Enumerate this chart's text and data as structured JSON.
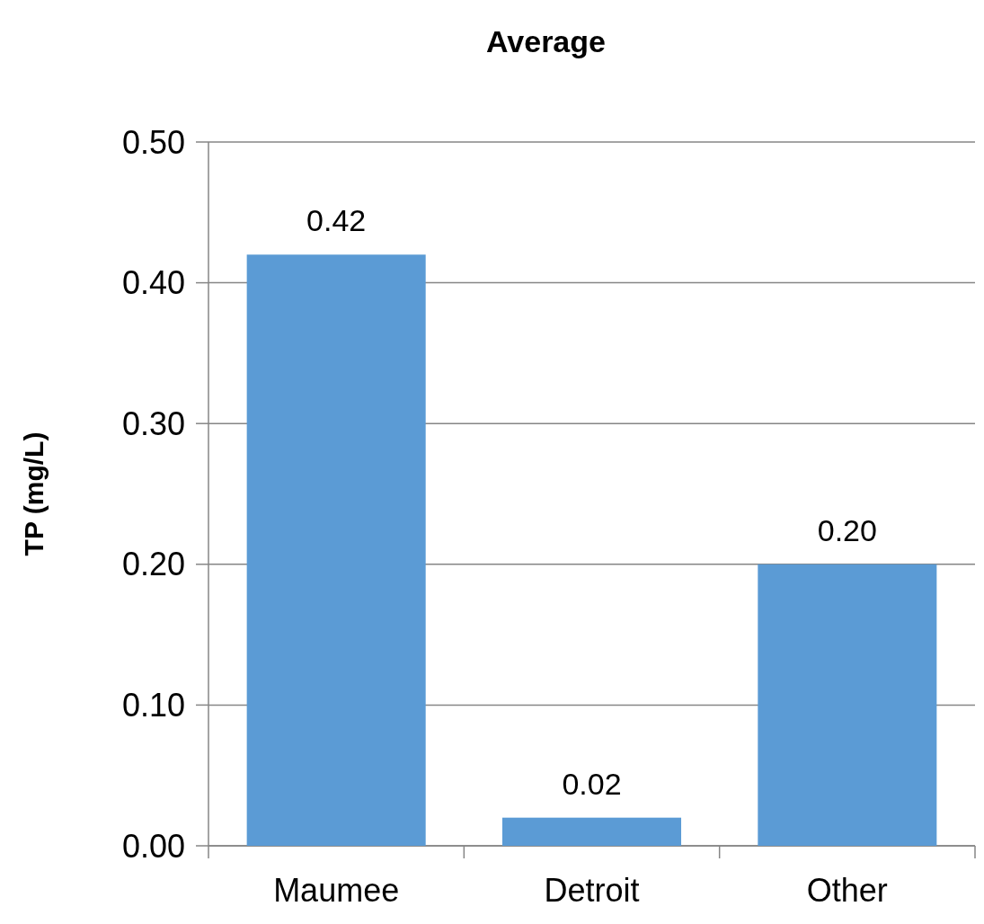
{
  "chart_data": {
    "type": "bar",
    "title": "Average",
    "ylabel": "TP (mg/L)",
    "categories": [
      "Maumee",
      "Detroit",
      "Other"
    ],
    "values": [
      0.42,
      0.02,
      0.2
    ],
    "value_labels": [
      "0.42",
      "0.02",
      "0.20"
    ],
    "color": "#5b9bd5",
    "ylim": [
      0,
      0.5
    ],
    "yticks": [
      {
        "value": 0,
        "label": "0.00"
      },
      {
        "value": 0.1,
        "label": "0.10"
      },
      {
        "value": 0.2,
        "label": "0.20"
      },
      {
        "value": 0.3,
        "label": "0.30"
      },
      {
        "value": 0.4,
        "label": "0.40"
      },
      {
        "value": 0.5,
        "label": "0.50"
      }
    ],
    "grid": "y"
  }
}
